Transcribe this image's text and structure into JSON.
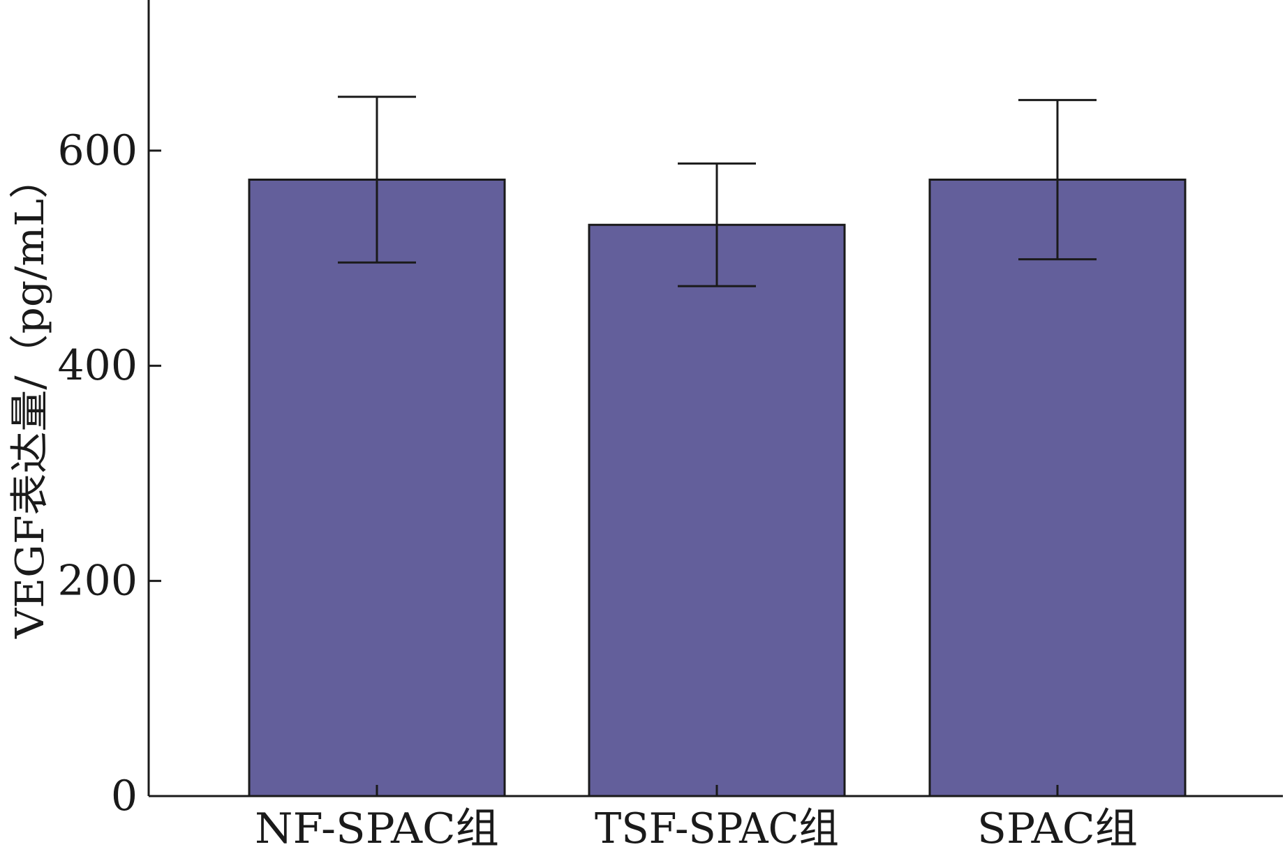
{
  "chart_data": {
    "type": "bar",
    "categories": [
      "NF-SPAC组",
      "TSF-SPAC组",
      "SPAC组"
    ],
    "values": [
      573,
      531,
      573
    ],
    "error": [
      77,
      57,
      74
    ],
    "ylabel": "VEGF表达量/（pg/mL）",
    "xlabel": "",
    "ylim": [
      0,
      740
    ],
    "yticks": [
      0,
      200,
      400,
      600
    ],
    "bar_color": "#635f9b",
    "grid": false,
    "legend": "none"
  }
}
